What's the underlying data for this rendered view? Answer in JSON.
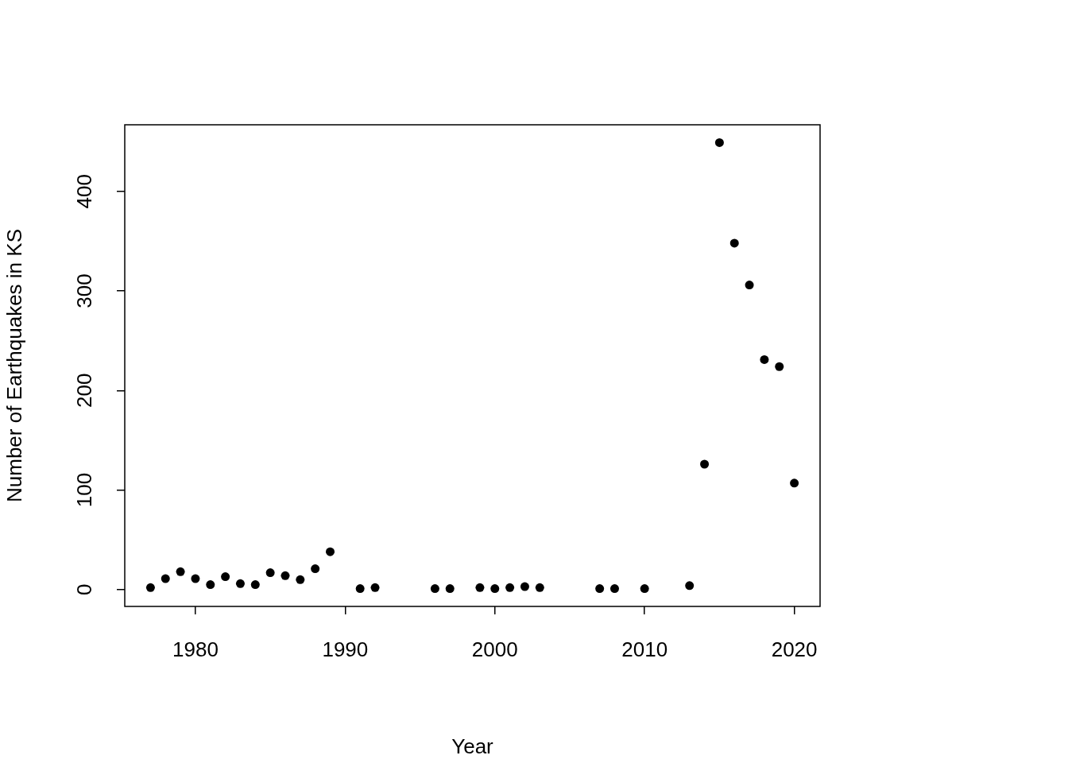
{
  "chart_data": {
    "type": "scatter",
    "xlabel": "Year",
    "ylabel": "Number of Earthquakes in KS",
    "x": [
      1977,
      1978,
      1979,
      1980,
      1981,
      1982,
      1983,
      1984,
      1985,
      1986,
      1987,
      1988,
      1989,
      1991,
      1992,
      1996,
      1997,
      1999,
      2000,
      2001,
      2002,
      2003,
      2007,
      2008,
      2010,
      2013,
      2014,
      2015,
      2016,
      2017,
      2018,
      2019,
      2020
    ],
    "values": [
      2,
      11,
      18,
      11,
      5,
      13,
      6,
      5,
      17,
      14,
      10,
      21,
      38,
      1,
      2,
      1,
      1,
      2,
      1,
      2,
      3,
      2,
      1,
      1,
      1,
      4,
      126,
      449,
      348,
      306,
      231,
      224,
      107
    ],
    "color": "#000000",
    "marker": "circle",
    "xlim": [
      1975.28,
      2021.72
    ],
    "xticks": [
      1980,
      1990,
      2000,
      2010,
      2020
    ],
    "ylim": [
      -16.9,
      466.9
    ],
    "yticks": [
      0,
      100,
      200,
      300,
      400
    ],
    "grid": false,
    "legend": false
  }
}
